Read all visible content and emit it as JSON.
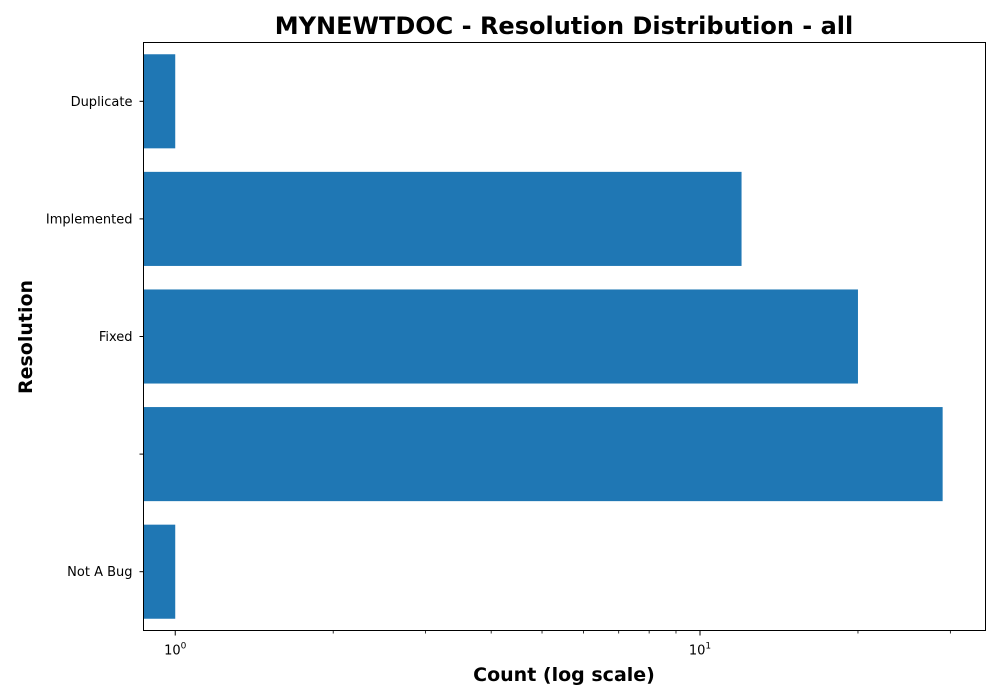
{
  "chart_data": {
    "type": "bar",
    "orientation": "horizontal",
    "title": "MYNEWTDOC - Resolution Distribution - all",
    "xlabel": "Count (log scale)",
    "ylabel": "Resolution",
    "x_scale": "log",
    "xlim": [
      0.87,
      35
    ],
    "x_major_ticks": [
      {
        "value": 1,
        "base": "10",
        "exp": "0"
      },
      {
        "value": 10,
        "base": "10",
        "exp": "1"
      }
    ],
    "x_minor_ticks": [
      2,
      3,
      4,
      5,
      6,
      7,
      8,
      9,
      20,
      30
    ],
    "categories": [
      "Not A Bug",
      "",
      "Fixed",
      "Implemented",
      "Duplicate"
    ],
    "values": [
      1,
      29,
      20,
      12,
      1
    ],
    "bar_color": "#1f77b4",
    "grid": false,
    "legend": "none"
  }
}
